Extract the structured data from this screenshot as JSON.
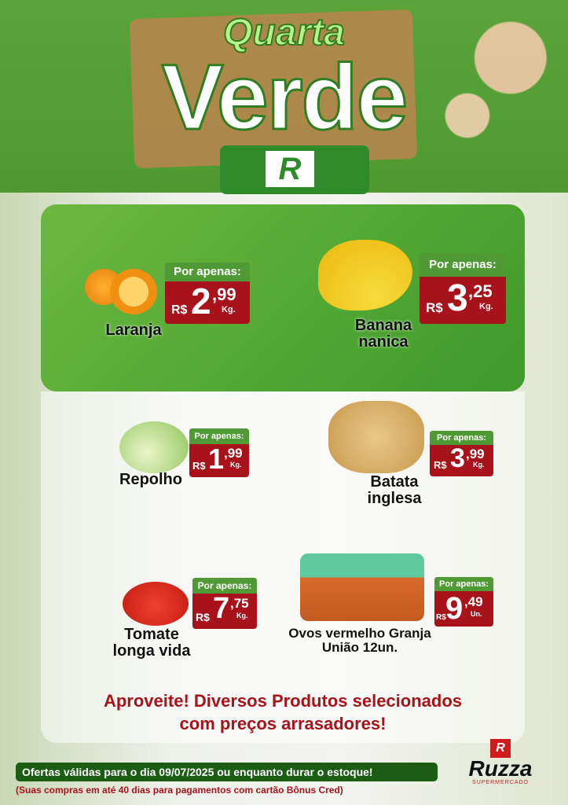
{
  "header": {
    "title_line1": "Quarta",
    "title_line2": "Verde",
    "logo_letter": "R"
  },
  "tag_label": "Por apenas:",
  "currency": "R$",
  "products": [
    {
      "name": "Laranja",
      "int": "2",
      "cents": ",99",
      "unit": "Kg."
    },
    {
      "name": "Banana nanica",
      "int": "3",
      "cents": ",25",
      "unit": "Kg."
    },
    {
      "name": "Repolho",
      "int": "1",
      "cents": ",99",
      "unit": "Kg."
    },
    {
      "name": "Batata inglesa",
      "int": "3",
      "cents": ",99",
      "unit": "Kg."
    },
    {
      "name": "Tomate longa vida",
      "int": "7",
      "cents": ",75",
      "unit": "Kg."
    },
    {
      "name": "Ovos vermelho Granja União 12un.",
      "int": "9",
      "cents": ",49",
      "unit": "Un."
    }
  ],
  "promo": {
    "line1": "Aproveite! Diversos Produtos selecionados",
    "line2": "com preços arrasadores!"
  },
  "footer": {
    "validity": "Ofertas válidas para o dia  09/07/2025 ou enquanto durar o estoque!",
    "payment_note": "(Suas compras em até 40 dias para pagamentos com cartão Bônus Cred)"
  },
  "brand": {
    "name": "Ruzza",
    "subtitle": "SUPERMERCADO",
    "logo_letter": "R"
  },
  "colors": {
    "green": "#4f9a35",
    "red": "#a8121a",
    "dark_green": "#1c5d14"
  }
}
